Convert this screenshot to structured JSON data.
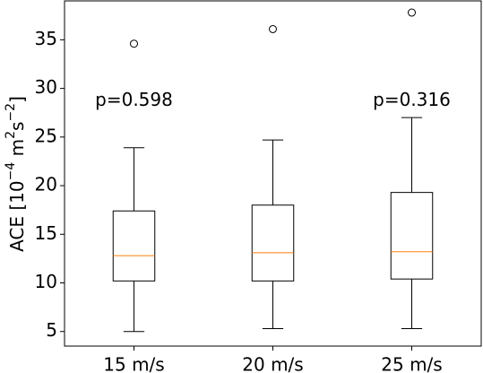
{
  "chart_data": {
    "type": "box",
    "title": "",
    "xlabel": "",
    "ylabel": "ACE [10",
    "ylabel_sup1": "−4",
    "ylabel_mid": " m",
    "ylabel_sup2": "2",
    "ylabel_s": "s",
    "ylabel_sup3": "−2",
    "ylabel_end": "]",
    "ylim": [
      3.5,
      39
    ],
    "yticks": [
      5,
      10,
      15,
      20,
      25,
      30,
      35
    ],
    "grid": false,
    "categories": [
      "15 m/s",
      "20 m/s",
      "25 m/s"
    ],
    "boxes": [
      {
        "category": "15 m/s",
        "whisker_low": 5.0,
        "q1": 10.2,
        "median": 12.8,
        "q3": 17.4,
        "whisker_high": 23.9,
        "outliers": [
          34.6
        ]
      },
      {
        "category": "20 m/s",
        "whisker_low": 5.3,
        "q1": 10.2,
        "median": 13.1,
        "q3": 18.0,
        "whisker_high": 24.7,
        "outliers": [
          36.1
        ]
      },
      {
        "category": "25 m/s",
        "whisker_low": 5.3,
        "q1": 10.4,
        "median": 13.2,
        "q3": 19.3,
        "whisker_high": 27.0,
        "outliers": [
          37.8
        ]
      }
    ],
    "annotations": [
      {
        "text": "p=0.598",
        "category": "15 m/s",
        "y": 28.2
      },
      {
        "text": "p=0.316",
        "category": "25 m/s",
        "y": 28.2
      }
    ],
    "colors": {
      "box": "#000000",
      "median": "#ff7f0e",
      "background": "#ffffff"
    }
  }
}
